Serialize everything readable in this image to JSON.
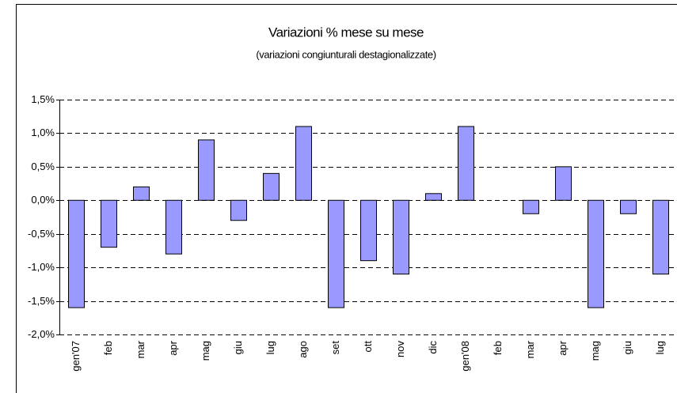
{
  "chart_data": {
    "type": "bar",
    "title": "Variazioni % mese su mese",
    "subtitle": "(variazioni congiunturali destagionalizzate)",
    "categories": [
      "gen'07",
      "feb",
      "mar",
      "apr",
      "mag",
      "giu",
      "lug",
      "ago",
      "set",
      "ott",
      "nov",
      "dic",
      "gen'08",
      "feb",
      "mar",
      "apr",
      "mag",
      "giu",
      "lug"
    ],
    "values": [
      -1.6,
      -0.7,
      0.2,
      -0.8,
      0.9,
      -0.3,
      0.4,
      1.1,
      -1.6,
      -0.9,
      -1.1,
      0.1,
      1.1,
      0,
      -0.2,
      0.5,
      -1.6,
      -0.2,
      -1.1
    ],
    "color": "#9999ff",
    "ylim": [
      -2,
      1.5
    ],
    "yticks": [
      {
        "value": -2,
        "label": "-2,0%"
      },
      {
        "value": -1.5,
        "label": "-1,5%"
      },
      {
        "value": -1,
        "label": "-1,0%"
      },
      {
        "value": -0.5,
        "label": "-0,5%"
      },
      {
        "value": 0,
        "label": "0,0%"
      },
      {
        "value": 0.5,
        "label": "0,5%"
      },
      {
        "value": 1,
        "label": "1,0%"
      },
      {
        "value": 1.5,
        "label": "1,5%"
      }
    ],
    "grid": true
  }
}
